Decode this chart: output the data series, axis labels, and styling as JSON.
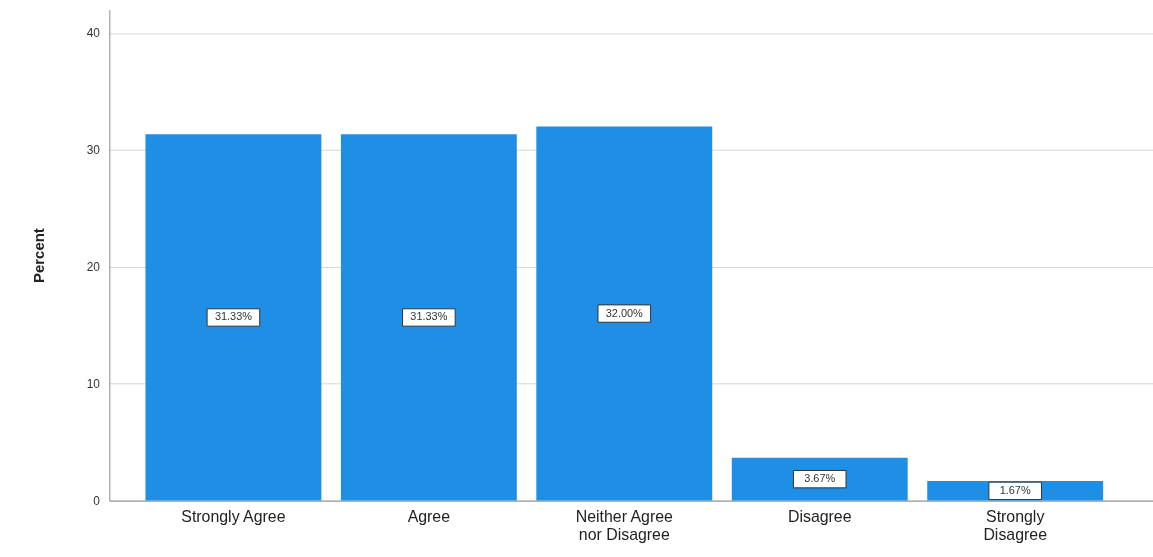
{
  "chart_data": {
    "type": "bar",
    "categories": [
      "Strongly Agree",
      "Agree",
      "Neither Agree\nnor Disagree",
      "Disagree",
      "Strongly\nDisagree"
    ],
    "values": [
      31.33,
      31.33,
      32.0,
      3.67,
      1.67
    ],
    "color": "#1f8fe6",
    "value_labels": [
      "31.33%",
      "31.33%",
      "32.00%",
      "3.67%",
      "1.67%"
    ],
    "ylabel": "Percent",
    "ylim": [
      0,
      42
    ],
    "yticks": [
      0,
      10,
      20,
      30,
      40
    ],
    "grid": "y"
  }
}
